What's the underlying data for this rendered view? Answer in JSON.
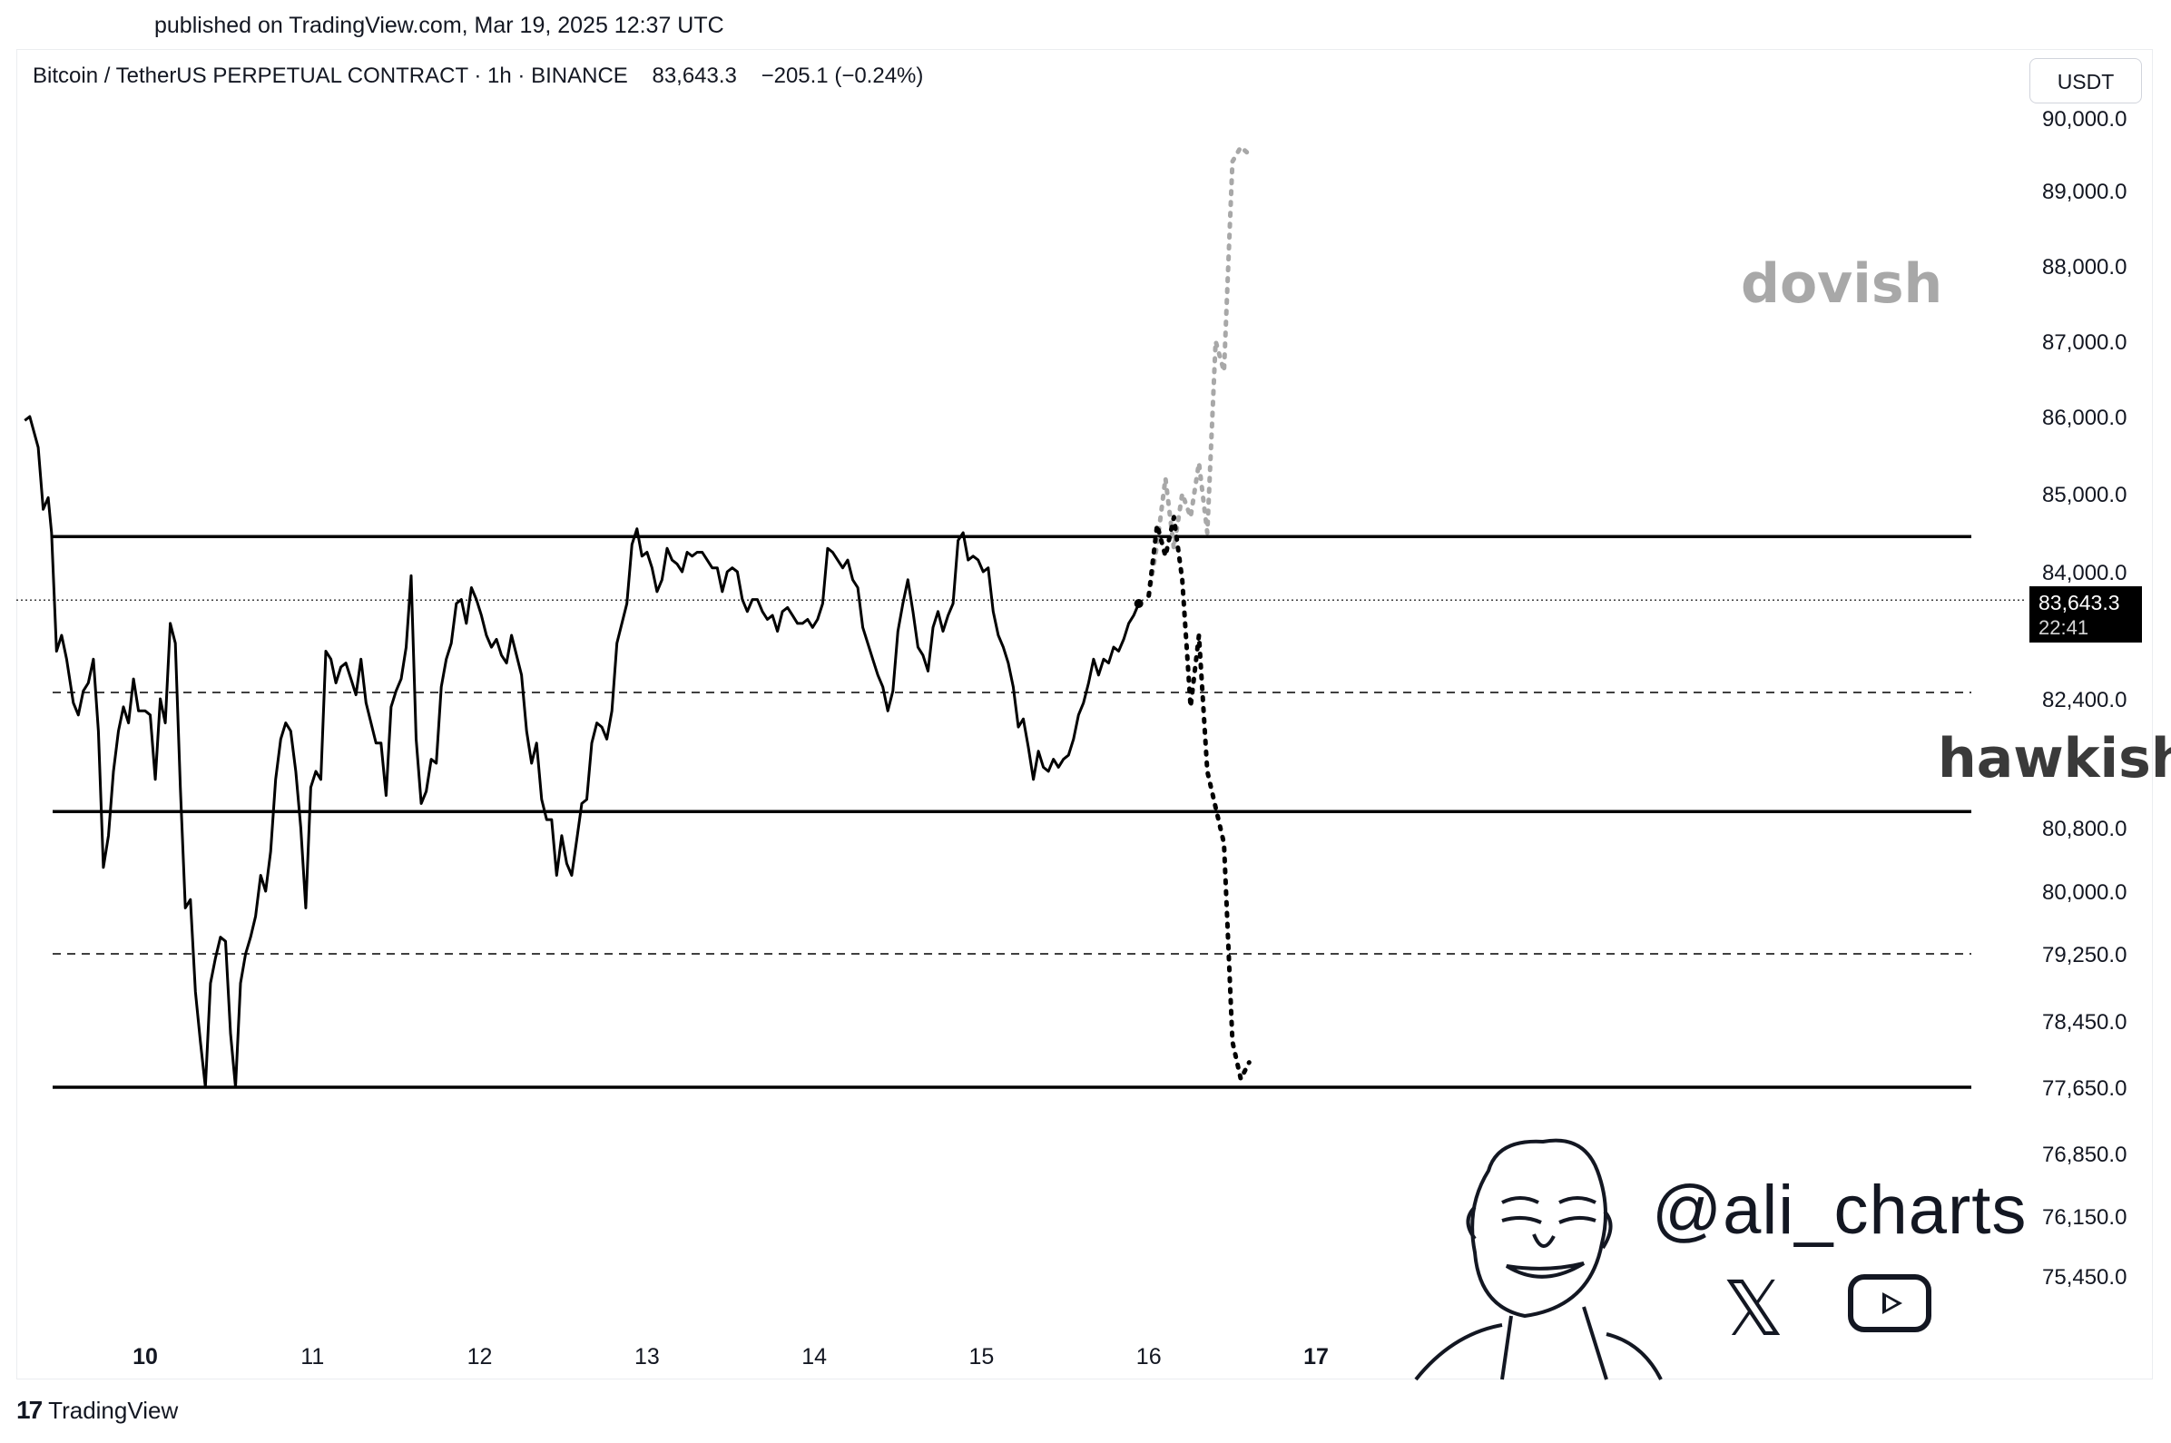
{
  "header": {
    "published_text": "published on TradingView.com, Mar 19, 2025 12:37 UTC"
  },
  "legend": {
    "symbol": "Bitcoin / TetherUS PERPETUAL CONTRACT",
    "interval": "1h",
    "exchange": "BINANCE",
    "last_price": "83,643.3",
    "change": "−205.1 (−0.24%)"
  },
  "currency_label": "USDT",
  "price_tag": {
    "price": "83,643.3",
    "countdown": "22:41",
    "color": "#000000"
  },
  "annotations": {
    "dovish": "dovish",
    "hawkish": "hawkish",
    "dovish_color": "#a8a8a8",
    "hawkish_color": "#3a3a3a"
  },
  "watermark": {
    "handle": "@ali_charts",
    "icons": [
      "x-logo-icon",
      "youtube-icon",
      "cartoon-face-icon"
    ]
  },
  "footer": {
    "brand": "TradingView"
  },
  "chart_data": {
    "type": "line",
    "y_tick_labels": [
      "90,000.0",
      "89,000.0",
      "88,000.0",
      "87,000.0",
      "86,000.0",
      "85,000.0",
      "84,000.0",
      "82,400.0",
      "80,800.0",
      "80,000.0",
      "79,250.0",
      "78,450.0",
      "77,650.0",
      "76,850.0",
      "76,150.0",
      "75,450.0"
    ],
    "y_tick_values": [
      90000,
      89000,
      88000,
      87000,
      86000,
      85000,
      84000,
      82400,
      80800,
      80000,
      79250,
      78450,
      77650,
      76850,
      76150,
      75450
    ],
    "x_tick_labels": [
      "10",
      "11",
      "12",
      "13",
      "14",
      "15",
      "16",
      "17"
    ],
    "x_tick_positions": [
      10,
      11,
      12,
      13,
      14,
      15,
      16,
      17
    ],
    "xlim": [
      9.25,
      20.0
    ],
    "ylim": [
      74900,
      90300
    ],
    "solid_levels": [
      84450,
      81000,
      77650
    ],
    "dashed_levels": [
      82480,
      79250
    ],
    "dotted_current_level": 83643.3,
    "series": [
      {
        "values": [
          [
            9.28,
            85950
          ],
          [
            9.31,
            86000
          ],
          [
            9.36,
            85600
          ],
          [
            9.39,
            84800
          ],
          [
            9.42,
            84950
          ],
          [
            9.44,
            84500
          ],
          [
            9.47,
            83000
          ],
          [
            9.5,
            83200
          ],
          [
            9.53,
            82900
          ],
          [
            9.57,
            82350
          ],
          [
            9.6,
            82200
          ],
          [
            9.63,
            82500
          ],
          [
            9.66,
            82600
          ],
          [
            9.69,
            82900
          ],
          [
            9.72,
            82000
          ],
          [
            9.75,
            80300
          ],
          [
            9.78,
            80700
          ],
          [
            9.81,
            81500
          ],
          [
            9.84,
            82000
          ],
          [
            9.87,
            82300
          ],
          [
            9.9,
            82100
          ],
          [
            9.93,
            82650
          ],
          [
            9.96,
            82250
          ],
          [
            10.0,
            82250
          ],
          [
            10.03,
            82200
          ],
          [
            10.06,
            81400
          ],
          [
            10.09,
            82400
          ],
          [
            10.12,
            82100
          ],
          [
            10.15,
            83350
          ],
          [
            10.18,
            83100
          ],
          [
            10.21,
            81300
          ],
          [
            10.24,
            79800
          ],
          [
            10.27,
            79900
          ],
          [
            10.3,
            78800
          ],
          [
            10.33,
            78200
          ],
          [
            10.36,
            77650
          ],
          [
            10.39,
            78900
          ],
          [
            10.42,
            79200
          ],
          [
            10.45,
            79450
          ],
          [
            10.48,
            79400
          ],
          [
            10.51,
            78300
          ],
          [
            10.54,
            77650
          ],
          [
            10.57,
            78900
          ],
          [
            10.6,
            79250
          ],
          [
            10.63,
            79450
          ],
          [
            10.66,
            79700
          ],
          [
            10.69,
            80200
          ],
          [
            10.72,
            80000
          ],
          [
            10.75,
            80500
          ],
          [
            10.78,
            81400
          ],
          [
            10.81,
            81900
          ],
          [
            10.84,
            82100
          ],
          [
            10.87,
            82000
          ],
          [
            10.9,
            81500
          ],
          [
            10.93,
            80800
          ],
          [
            10.96,
            79800
          ],
          [
            10.99,
            81300
          ],
          [
            11.02,
            81500
          ],
          [
            11.05,
            81400
          ],
          [
            11.08,
            83000
          ],
          [
            11.11,
            82900
          ],
          [
            11.14,
            82600
          ],
          [
            11.17,
            82800
          ],
          [
            11.2,
            82850
          ],
          [
            11.23,
            82650
          ],
          [
            11.26,
            82450
          ],
          [
            11.29,
            82900
          ],
          [
            11.32,
            82350
          ],
          [
            11.35,
            82100
          ],
          [
            11.38,
            81850
          ],
          [
            11.41,
            81850
          ],
          [
            11.44,
            81200
          ],
          [
            11.47,
            82300
          ],
          [
            11.5,
            82500
          ],
          [
            11.53,
            82650
          ],
          [
            11.56,
            83050
          ],
          [
            11.59,
            83950
          ],
          [
            11.62,
            81900
          ],
          [
            11.65,
            81100
          ],
          [
            11.68,
            81250
          ],
          [
            11.71,
            81650
          ],
          [
            11.74,
            81600
          ],
          [
            11.77,
            82550
          ],
          [
            11.8,
            82900
          ],
          [
            11.83,
            83100
          ],
          [
            11.86,
            83600
          ],
          [
            11.89,
            83650
          ],
          [
            11.92,
            83350
          ],
          [
            11.95,
            83800
          ],
          [
            11.98,
            83650
          ],
          [
            12.01,
            83450
          ],
          [
            12.04,
            83200
          ],
          [
            12.07,
            83050
          ],
          [
            12.1,
            83150
          ],
          [
            12.13,
            82950
          ],
          [
            12.16,
            82850
          ],
          [
            12.19,
            83200
          ],
          [
            12.22,
            82950
          ],
          [
            12.25,
            82700
          ],
          [
            12.28,
            82000
          ],
          [
            12.31,
            81600
          ],
          [
            12.34,
            81850
          ],
          [
            12.37,
            81150
          ],
          [
            12.4,
            80900
          ],
          [
            12.43,
            80900
          ],
          [
            12.46,
            80200
          ],
          [
            12.49,
            80700
          ],
          [
            12.52,
            80350
          ],
          [
            12.55,
            80200
          ],
          [
            12.58,
            80650
          ],
          [
            12.61,
            81100
          ],
          [
            12.64,
            81150
          ],
          [
            12.67,
            81850
          ],
          [
            12.7,
            82100
          ],
          [
            12.73,
            82050
          ],
          [
            12.76,
            81900
          ],
          [
            12.79,
            82250
          ],
          [
            12.82,
            83100
          ],
          [
            12.85,
            83350
          ],
          [
            12.88,
            83600
          ],
          [
            12.91,
            84350
          ],
          [
            12.94,
            84550
          ],
          [
            12.97,
            84200
          ],
          [
            13.0,
            84250
          ],
          [
            13.03,
            84050
          ],
          [
            13.06,
            83750
          ],
          [
            13.09,
            83900
          ],
          [
            13.12,
            84300
          ],
          [
            13.15,
            84150
          ],
          [
            13.18,
            84100
          ],
          [
            13.21,
            84000
          ],
          [
            13.24,
            84250
          ],
          [
            13.27,
            84200
          ],
          [
            13.3,
            84250
          ],
          [
            13.33,
            84250
          ],
          [
            13.36,
            84150
          ],
          [
            13.39,
            84050
          ],
          [
            13.42,
            84050
          ],
          [
            13.45,
            83750
          ],
          [
            13.48,
            84000
          ],
          [
            13.51,
            84050
          ],
          [
            13.54,
            84000
          ],
          [
            13.57,
            83650
          ],
          [
            13.6,
            83500
          ],
          [
            13.63,
            83650
          ],
          [
            13.66,
            83650
          ],
          [
            13.69,
            83500
          ],
          [
            13.72,
            83400
          ],
          [
            13.75,
            83450
          ],
          [
            13.78,
            83250
          ],
          [
            13.81,
            83500
          ],
          [
            13.84,
            83550
          ],
          [
            13.87,
            83450
          ],
          [
            13.9,
            83350
          ],
          [
            13.93,
            83350
          ],
          [
            13.96,
            83400
          ],
          [
            13.99,
            83300
          ],
          [
            14.02,
            83400
          ],
          [
            14.05,
            83600
          ],
          [
            14.08,
            84300
          ],
          [
            14.11,
            84250
          ],
          [
            14.14,
            84150
          ],
          [
            14.17,
            84050
          ],
          [
            14.2,
            84150
          ],
          [
            14.23,
            83900
          ],
          [
            14.26,
            83800
          ],
          [
            14.29,
            83300
          ],
          [
            14.32,
            83100
          ],
          [
            14.35,
            82900
          ],
          [
            14.38,
            82700
          ],
          [
            14.41,
            82550
          ],
          [
            14.44,
            82250
          ],
          [
            14.47,
            82500
          ],
          [
            14.5,
            83250
          ],
          [
            14.53,
            83600
          ],
          [
            14.56,
            83900
          ],
          [
            14.59,
            83500
          ],
          [
            14.62,
            83050
          ],
          [
            14.65,
            82950
          ],
          [
            14.68,
            82750
          ],
          [
            14.71,
            83300
          ],
          [
            14.74,
            83500
          ],
          [
            14.77,
            83250
          ],
          [
            14.8,
            83450
          ],
          [
            14.83,
            83600
          ],
          [
            14.86,
            84400
          ],
          [
            14.89,
            84500
          ],
          [
            14.92,
            84150
          ],
          [
            14.95,
            84200
          ],
          [
            14.98,
            84150
          ],
          [
            15.01,
            84000
          ],
          [
            15.04,
            84050
          ],
          [
            15.07,
            83500
          ],
          [
            15.1,
            83200
          ],
          [
            15.13,
            83050
          ],
          [
            15.16,
            82850
          ],
          [
            15.19,
            82550
          ],
          [
            15.22,
            82050
          ],
          [
            15.25,
            82150
          ],
          [
            15.28,
            81800
          ],
          [
            15.31,
            81400
          ],
          [
            15.34,
            81750
          ],
          [
            15.37,
            81550
          ],
          [
            15.4,
            81500
          ],
          [
            15.43,
            81650
          ],
          [
            15.46,
            81550
          ],
          [
            15.49,
            81650
          ],
          [
            15.52,
            81700
          ],
          [
            15.55,
            81900
          ],
          [
            15.58,
            82200
          ],
          [
            15.61,
            82350
          ],
          [
            15.64,
            82600
          ],
          [
            15.67,
            82900
          ],
          [
            15.7,
            82700
          ],
          [
            15.73,
            82900
          ],
          [
            15.76,
            82850
          ],
          [
            15.79,
            83050
          ],
          [
            15.82,
            83000
          ],
          [
            15.85,
            83150
          ],
          [
            15.88,
            83350
          ],
          [
            15.91,
            83450
          ],
          [
            15.94,
            83600
          ]
        ]
      }
    ],
    "scenarios": [
      {
        "label": "dovish",
        "style": "dotted",
        "color": "#a8a8a8",
        "values": [
          [
            16.0,
            83700
          ],
          [
            16.05,
            84350
          ],
          [
            16.1,
            85200
          ],
          [
            16.15,
            84300
          ],
          [
            16.2,
            85000
          ],
          [
            16.25,
            84700
          ],
          [
            16.3,
            85400
          ],
          [
            16.35,
            84500
          ],
          [
            16.4,
            87000
          ],
          [
            16.45,
            86600
          ],
          [
            16.5,
            89400
          ],
          [
            16.55,
            89600
          ],
          [
            16.6,
            89500
          ]
        ]
      },
      {
        "label": "hawkish",
        "style": "dotted",
        "color": "#000000",
        "values": [
          [
            16.0,
            83700
          ],
          [
            16.05,
            84600
          ],
          [
            16.1,
            84200
          ],
          [
            16.15,
            84700
          ],
          [
            16.2,
            83900
          ],
          [
            16.25,
            82300
          ],
          [
            16.3,
            83200
          ],
          [
            16.35,
            81500
          ],
          [
            16.4,
            81050
          ],
          [
            16.45,
            80600
          ],
          [
            16.5,
            78200
          ],
          [
            16.55,
            77750
          ],
          [
            16.6,
            77950
          ]
        ]
      }
    ]
  }
}
